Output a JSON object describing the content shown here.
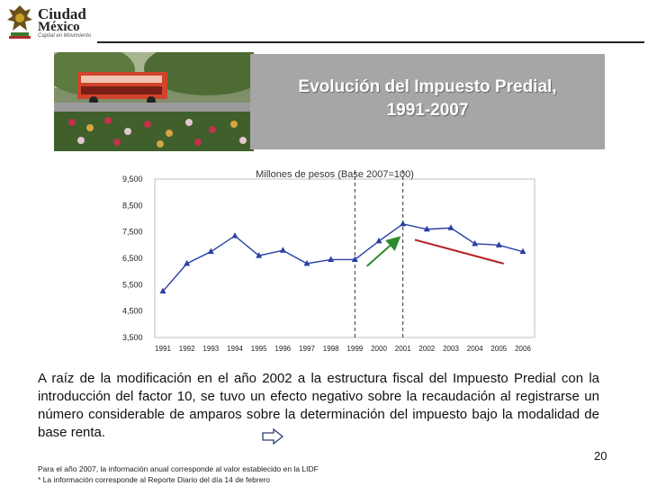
{
  "logo": {
    "line1": "Ciudad",
    "line2": "México",
    "tagline": "Capital en Movimiento"
  },
  "banner": {
    "title_line1": "Evolución del Impuesto Predial,",
    "title_line2": "1991-2007"
  },
  "chart_data": {
    "type": "line",
    "title": "Millones de pesos (Base 2007=100)",
    "categories": [
      "1991",
      "1992",
      "1993",
      "1994",
      "1995",
      "1996",
      "1997",
      "1998",
      "1999",
      "2000",
      "2001",
      "2002",
      "2003",
      "2004",
      "2005",
      "2006"
    ],
    "series": [
      {
        "name": "Impuesto Predial",
        "values": [
          5250,
          6300,
          6750,
          7350,
          6600,
          6800,
          6300,
          6450,
          6450,
          7150,
          7800,
          7600,
          7650,
          7050,
          7000,
          6750
        ],
        "color": "#2a3fa6"
      }
    ],
    "ylim": [
      3500,
      9500
    ],
    "yticks": [
      9500,
      8500,
      7500,
      6500,
      5500,
      4500,
      3500
    ],
    "ytick_labels": [
      "9,500",
      "8,500",
      "7,500",
      "6,500",
      "5,500",
      "4,500",
      "3,500"
    ],
    "vlines_at": [
      "1999",
      "2001"
    ],
    "annotations": [
      {
        "type": "trend-arrow",
        "from": {
          "x": 1999.5,
          "y": 6200
        },
        "to": {
          "x": 2000.8,
          "y": 7250
        },
        "color": "#2e8b2e"
      },
      {
        "type": "trend-line",
        "from": {
          "x": 2001.5,
          "y": 7200
        },
        "to": {
          "x": 2005.2,
          "y": 6300
        },
        "color": "#b22222"
      }
    ]
  },
  "body_text": "A raíz de la modificación en el año 2002 a la estructura fiscal del Impuesto Predial con la introducción del factor 10, se tuvo un efecto negativo sobre la recaudación al registrarse un número considerable de amparos sobre la determinación del impuesto bajo la modalidad de base renta.",
  "page_number": "20",
  "footnotes": [
    "Para el año 2007, la información anual corresponde al valor establecido en la LIDF",
    "* La información corresponde al Reporte Diario del día 14 de febrero"
  ]
}
